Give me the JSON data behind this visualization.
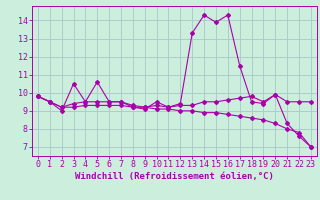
{
  "xlabel": "Windchill (Refroidissement éolien,°C)",
  "background_color": "#cceedd",
  "grid_color": "#aacccc",
  "line_color": "#aa00aa",
  "x_values": [
    0,
    1,
    2,
    3,
    4,
    5,
    6,
    7,
    8,
    9,
    10,
    11,
    12,
    13,
    14,
    15,
    16,
    17,
    18,
    19,
    20,
    21,
    22,
    23
  ],
  "series1": [
    9.8,
    9.5,
    9.0,
    10.5,
    9.5,
    10.6,
    9.5,
    9.5,
    9.2,
    9.1,
    9.5,
    9.2,
    9.4,
    13.3,
    14.3,
    13.9,
    14.3,
    11.5,
    9.5,
    9.4,
    9.9,
    8.3,
    7.6,
    7.0
  ],
  "series2": [
    9.8,
    9.5,
    9.2,
    9.4,
    9.5,
    9.5,
    9.5,
    9.5,
    9.3,
    9.2,
    9.3,
    9.2,
    9.3,
    9.3,
    9.5,
    9.5,
    9.6,
    9.7,
    9.8,
    9.5,
    9.9,
    9.5,
    9.5,
    9.5
  ],
  "series3": [
    9.8,
    9.5,
    9.2,
    9.2,
    9.3,
    9.3,
    9.3,
    9.3,
    9.2,
    9.2,
    9.1,
    9.1,
    9.0,
    9.0,
    8.9,
    8.9,
    8.8,
    8.7,
    8.6,
    8.5,
    8.3,
    8.0,
    7.8,
    7.0
  ],
  "ylim": [
    6.5,
    14.8
  ],
  "yticks": [
    7,
    8,
    9,
    10,
    11,
    12,
    13,
    14
  ],
  "xlabel_fontsize": 6.5,
  "tick_fontsize": 6
}
